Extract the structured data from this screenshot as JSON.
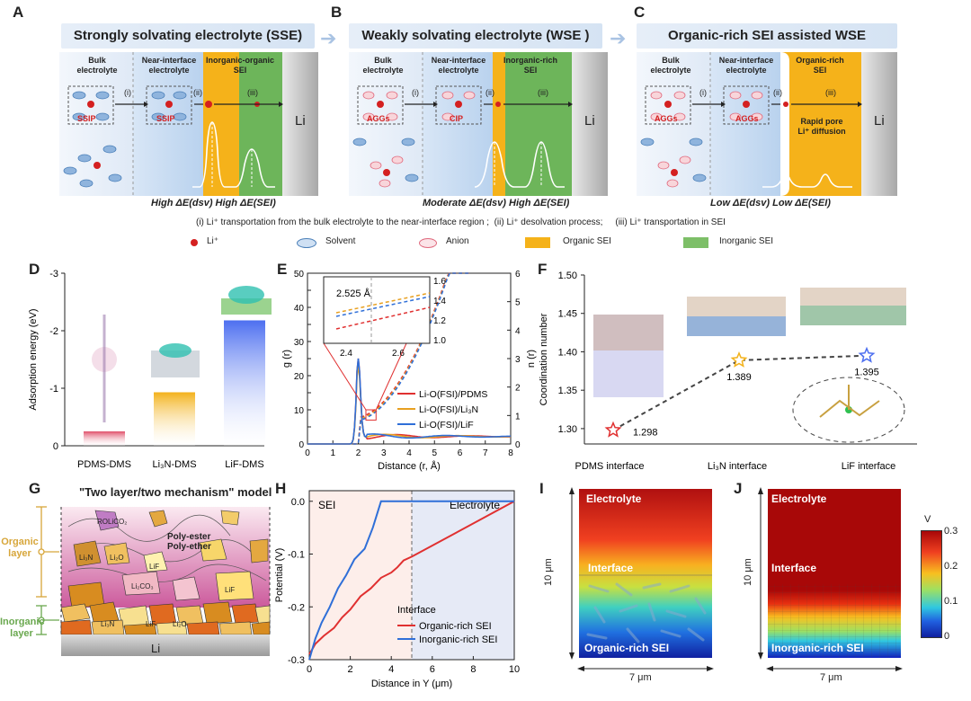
{
  "top": {
    "A": {
      "letter": "A",
      "title": "Strongly solvating electrolyte (SSE)",
      "bulk": [
        "Bulk",
        "electrolyte"
      ],
      "near": [
        "Near-interface",
        "electrolyte"
      ],
      "sei": [
        "Inorganic-organic",
        "SEI"
      ],
      "cluster1": "SSIP",
      "cluster2": "SSIP",
      "energy": "High ΔE(dsv)  High ΔE(SEI)"
    },
    "B": {
      "letter": "B",
      "title": "Weakly solvating  electrolyte (WSE )",
      "bulk": [
        "Bulk",
        "electrolyte"
      ],
      "near": [
        "Near-interface",
        "electrolyte"
      ],
      "sei": [
        "Inorganic-rich",
        "SEI"
      ],
      "cluster1": "AGGs",
      "cluster2": "CIP",
      "energy": "Moderate ΔE(dsv)  High ΔE(SEI)"
    },
    "C": {
      "letter": "C",
      "title": "Organic-rich SEI assisted WSE",
      "bulk": [
        "Bulk",
        "electrolyte"
      ],
      "near": [
        "Near-interface",
        "electrolyte"
      ],
      "sei": [
        "Organic-rich",
        "SEI"
      ],
      "cluster1": "AGGs",
      "cluster2": "AGGs",
      "extra": [
        "Rapid pore",
        "Li⁺ diffusion"
      ],
      "energy": "Low ΔE(dsv)  Low ΔE(SEI)"
    },
    "steps": [
      "(i)",
      "(ii)",
      "(iii)"
    ],
    "li": "Li",
    "caption_i": "(i) Li⁺ transportation from the bulk electrolyte to the near-interface region ;",
    "caption_ii": "(ii) Li⁺ desolvation process;",
    "caption_iii": "(iii) Li⁺ transportation in SEI",
    "legend": [
      "Li⁺",
      "Solvent",
      "Anion",
      "Organic SEI",
      "Inorganic SEI"
    ]
  },
  "D": {
    "letter": "D",
    "chart_data": {
      "type": "bar",
      "ylabel": "Adsorption energy (eV)",
      "categories": [
        "PDMS-DMS",
        "Li₃N-DMS",
        "LiF-DMS"
      ],
      "values": [
        -0.25,
        -0.93,
        -2.18
      ],
      "ylim": [
        0,
        -3
      ],
      "yticks": [
        "-3",
        "-2",
        "-1",
        "0"
      ],
      "colors": [
        "#e0506a",
        "#f3b21b",
        "#4d6ff0"
      ]
    }
  },
  "E": {
    "letter": "E",
    "chart_data": {
      "type": "line",
      "xlabel": "Distance (r, Å)",
      "ylabel_left": "g (r)",
      "ylabel_right": "n (r)",
      "xlim": [
        0,
        8
      ],
      "ylim_left": [
        0,
        50
      ],
      "ylim_right": [
        0,
        6
      ],
      "xticks": [
        "0",
        "1",
        "2",
        "3",
        "4",
        "5",
        "6",
        "7",
        "8"
      ],
      "yticks_left": [
        "0",
        "5",
        "10",
        "15",
        "20",
        "25",
        "30",
        "35",
        "40",
        "45",
        "50"
      ],
      "yticks_right": [
        "0",
        "1",
        "2",
        "3",
        "4",
        "5",
        "6"
      ],
      "series": [
        {
          "name": "Li-O(FSI)/PDMS",
          "color": "#e03030",
          "peak": 23
        },
        {
          "name": "Li-O(FSI)/Li₃N",
          "color": "#e8a020",
          "peak": 21
        },
        {
          "name": "Li-O(FSI)/LiF",
          "color": "#2f6fd8",
          "peak": 23
        }
      ],
      "inset": {
        "label": "2.525 Å",
        "xticks": [
          "2.4",
          "2.6"
        ],
        "yticks": [
          "1.0",
          "1.2",
          "1.4",
          "1.6"
        ]
      }
    }
  },
  "F": {
    "letter": "F",
    "chart_data": {
      "type": "scatter",
      "ylabel": "Coordination number",
      "categories": [
        "PDMS interface",
        "Li₃N interface",
        "LiF interface"
      ],
      "values": [
        1.298,
        1.389,
        1.395
      ],
      "labels": [
        "1.298",
        "1.389",
        "1.395"
      ],
      "ylim": [
        1.28,
        1.5
      ],
      "yticks": [
        "1.30",
        "1.35",
        "1.40",
        "1.45",
        "1.50"
      ],
      "colors": [
        "#e03030",
        "#f3b21b",
        "#4d6ff0"
      ]
    }
  },
  "G": {
    "letter": "G",
    "title": "\"Two layer/two mechanism\" model",
    "organic_layer": [
      "Organic",
      "layer"
    ],
    "inorganic_layer": [
      "Inorganic",
      "layer"
    ],
    "particles": [
      "ROLiCO₂",
      "Li₃N",
      "Li₂O",
      "LiF",
      "Li₂CO₃",
      "LiF",
      "Li₃N",
      "LiF",
      "Li₂O"
    ],
    "poly": [
      "Poly-ester",
      "Poly-ether"
    ],
    "li": "Li"
  },
  "H": {
    "letter": "H",
    "chart_data": {
      "type": "line",
      "xlabel": "Distance in Y (μm)",
      "ylabel": "Potential (V)",
      "xlim": [
        0,
        10
      ],
      "ylim": [
        -0.3,
        0.02
      ],
      "xticks": [
        "0",
        "2",
        "4",
        "6",
        "8",
        "10"
      ],
      "yticks": [
        "0.0",
        "-0.1",
        "-0.2",
        "-0.3"
      ],
      "series": [
        {
          "name": "Organic-rich SEI",
          "color": "#e03030",
          "x": [
            0,
            0.3,
            0.7,
            1.2,
            1.6,
            2,
            2.5,
            3,
            3.5,
            4,
            4.3,
            4.6,
            5,
            10
          ],
          "y": [
            -0.29,
            -0.27,
            -0.255,
            -0.24,
            -0.22,
            -0.205,
            -0.18,
            -0.165,
            -0.145,
            -0.135,
            -0.125,
            -0.112,
            -0.105,
            0
          ]
        },
        {
          "name": "Inorganic-rich SEI",
          "color": "#2f6fd8",
          "x": [
            0,
            0.3,
            0.6,
            1,
            1.4,
            1.8,
            2.2,
            2.7,
            3.1,
            3.5,
            10
          ],
          "y": [
            -0.3,
            -0.26,
            -0.23,
            -0.2,
            -0.165,
            -0.14,
            -0.11,
            -0.09,
            -0.05,
            0,
            0
          ]
        }
      ],
      "regions": [
        "SEI",
        "Electrolyte"
      ],
      "interface": "Interface"
    }
  },
  "I": {
    "letter": "I",
    "electrolyte": "Electrolyte",
    "interface": "Interface",
    "sei": "Organic-rich SEI",
    "ydim": "10 μm",
    "xdim": "7 μm"
  },
  "J": {
    "letter": "J",
    "electrolyte": "Electrolyte",
    "interface": "Interface",
    "sei": "Inorganic-rich SEI",
    "ydim": "10 μm",
    "xdim": "7 μm"
  },
  "colorbar": {
    "unit": "V",
    "ticks": [
      "0.3",
      "0.2",
      "0.1",
      "0"
    ]
  }
}
